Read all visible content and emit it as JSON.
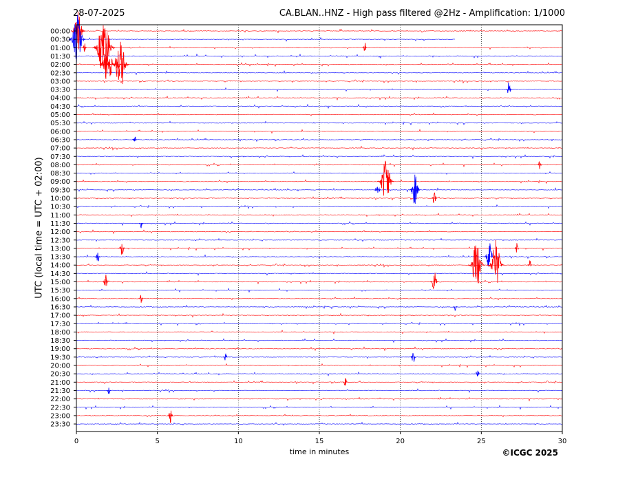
{
  "chart_data": {
    "type": "line",
    "date": "28-07-2025",
    "title": "CA.BLAN..HNZ - High pass filtered @2Hz - Amplification: 1/1000",
    "ylabel": "UTC (local time = UTC + 02:00)",
    "xlabel": "time in minutes",
    "credit": "©ICGC 2025",
    "xlim": [
      0,
      30
    ],
    "xticks": [
      0,
      5,
      10,
      15,
      20,
      25,
      30
    ],
    "grid": "vertical dotted at x ticks",
    "colors": {
      "even_rows": "#ff0000",
      "odd_rows": "#0000ff"
    },
    "rows": [
      {
        "label": "00:00"
      },
      {
        "label": "00:30",
        "end_minute": 23.4
      },
      {
        "label": "01:00"
      },
      {
        "label": "01:30"
      },
      {
        "label": "02:00"
      },
      {
        "label": "02:30"
      },
      {
        "label": "03:00"
      },
      {
        "label": "03:30"
      },
      {
        "label": "04:00"
      },
      {
        "label": "04:30"
      },
      {
        "label": "05:00"
      },
      {
        "label": "05:30"
      },
      {
        "label": "06:00"
      },
      {
        "label": "06:30"
      },
      {
        "label": "07:00"
      },
      {
        "label": "07:30"
      },
      {
        "label": "08:00"
      },
      {
        "label": "08:30"
      },
      {
        "label": "09:00"
      },
      {
        "label": "09:30"
      },
      {
        "label": "10:00"
      },
      {
        "label": "10:30"
      },
      {
        "label": "11:00"
      },
      {
        "label": "11:30"
      },
      {
        "label": "12:00"
      },
      {
        "label": "12:30"
      },
      {
        "label": "13:00"
      },
      {
        "label": "13:30"
      },
      {
        "label": "14:00"
      },
      {
        "label": "14:30"
      },
      {
        "label": "15:00"
      },
      {
        "label": "15:30"
      },
      {
        "label": "16:00"
      },
      {
        "label": "16:30"
      },
      {
        "label": "17:00"
      },
      {
        "label": "17:30"
      },
      {
        "label": "18:00"
      },
      {
        "label": "18:30"
      },
      {
        "label": "19:00"
      },
      {
        "label": "19:30"
      },
      {
        "label": "20:00"
      },
      {
        "label": "20:30"
      },
      {
        "label": "21:00"
      },
      {
        "label": "21:30"
      },
      {
        "label": "22:00"
      },
      {
        "label": "22:30"
      },
      {
        "label": "23:00"
      },
      {
        "label": "23:30"
      }
    ],
    "events": [
      {
        "row": 0,
        "minute": 0.1,
        "amplitude": 2.5
      },
      {
        "row": 1,
        "minute": 0.05,
        "amplitude": 3
      },
      {
        "row": 2,
        "minute": 0.5,
        "amplitude": 0.6
      },
      {
        "row": 2,
        "minute": 1.7,
        "amplitude": 4
      },
      {
        "row": 2,
        "minute": 17.8,
        "amplitude": 0.8
      },
      {
        "row": 4,
        "minute": 1.8,
        "amplitude": 2.0
      },
      {
        "row": 4,
        "minute": 2.1,
        "amplitude": 1.5
      },
      {
        "row": 4,
        "minute": 2.5,
        "amplitude": 1.5
      },
      {
        "row": 4,
        "minute": 2.75,
        "amplitude": 3.0
      },
      {
        "row": 7,
        "minute": 26.7,
        "amplitude": 1.0
      },
      {
        "row": 13,
        "minute": 3.6,
        "amplitude": 0.6
      },
      {
        "row": 16,
        "minute": 28.6,
        "amplitude": 0.6
      },
      {
        "row": 18,
        "minute": 19.1,
        "amplitude": 3.0
      },
      {
        "row": 19,
        "minute": 18.6,
        "amplitude": 1.2
      },
      {
        "row": 19,
        "minute": 20.9,
        "amplitude": 2.0
      },
      {
        "row": 20,
        "minute": 22.1,
        "amplitude": 1.0
      },
      {
        "row": 23,
        "minute": 4.0,
        "amplitude": 0.6
      },
      {
        "row": 26,
        "minute": 2.8,
        "amplitude": 1.2
      },
      {
        "row": 26,
        "minute": 27.2,
        "amplitude": 0.8
      },
      {
        "row": 27,
        "minute": 1.3,
        "amplitude": 1.0
      },
      {
        "row": 27,
        "minute": 25.5,
        "amplitude": 1.8
      },
      {
        "row": 28,
        "minute": 24.7,
        "amplitude": 3.0
      },
      {
        "row": 28,
        "minute": 25.9,
        "amplitude": 3.0
      },
      {
        "row": 28,
        "minute": 28.0,
        "amplitude": 0.8
      },
      {
        "row": 30,
        "minute": 1.8,
        "amplitude": 1.0
      },
      {
        "row": 30,
        "minute": 22.1,
        "amplitude": 1.5
      },
      {
        "row": 32,
        "minute": 4.0,
        "amplitude": 0.7
      },
      {
        "row": 33,
        "minute": 23.4,
        "amplitude": 0.6
      },
      {
        "row": 39,
        "minute": 9.2,
        "amplitude": 0.7
      },
      {
        "row": 39,
        "minute": 20.8,
        "amplitude": 1.0
      },
      {
        "row": 41,
        "minute": 24.8,
        "amplitude": 0.6
      },
      {
        "row": 42,
        "minute": 16.6,
        "amplitude": 0.6
      },
      {
        "row": 43,
        "minute": 2.0,
        "amplitude": 0.5
      },
      {
        "row": 46,
        "minute": 5.8,
        "amplitude": 1.0
      }
    ]
  }
}
